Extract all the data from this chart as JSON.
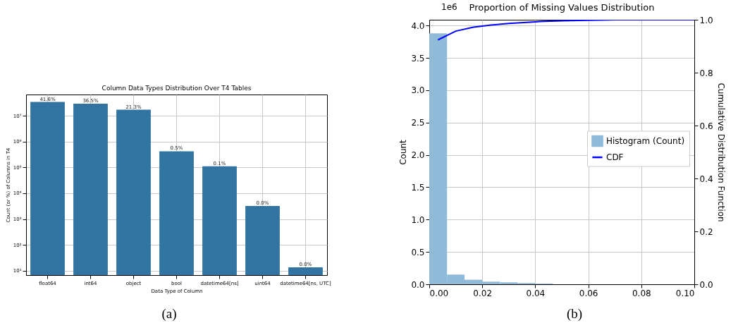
{
  "chart_data": [
    {
      "type": "bar",
      "title": "Column Data Types Distribution Over T4 Tables",
      "xlabel": "Data Type of Column",
      "ylabel": "Count (or %) of Columns in T4",
      "categories": [
        "float64",
        "int64",
        "object",
        "bool",
        "datetime64[ns]",
        "uint64",
        "datetime64[ns, UTC]"
      ],
      "values": [
        34000000,
        29000000,
        17000000,
        420000,
        110000,
        3200,
        13.5
      ],
      "color": "#3274a1",
      "log": true,
      "ylim": [
        6.8,
        66000000
      ],
      "yticks": [
        {
          "value": 10,
          "label": "10¹"
        },
        {
          "value": 100,
          "label": "10²"
        },
        {
          "value": 1000,
          "label": "10³"
        },
        {
          "value": 10000,
          "label": "10⁴"
        },
        {
          "value": 100000,
          "label": "10⁵"
        },
        {
          "value": 1000000,
          "label": "10⁶"
        },
        {
          "value": 10000000,
          "label": "10⁷"
        }
      ],
      "grid": true,
      "annotations": [
        {
          "text": "41.6%",
          "x": "float64",
          "y": 34000000
        },
        {
          "text": "36.5%",
          "x": "int64",
          "y": 29000000
        },
        {
          "text": "21.3%",
          "x": "object",
          "y": 17000000
        },
        {
          "text": "0.5%",
          "x": "bool",
          "y": 420000
        },
        {
          "text": "0.1%",
          "x": "datetime64[ns]",
          "y": 110000
        },
        {
          "text": "0.0%",
          "x": "uint64",
          "y": 3200
        },
        {
          "text": "0.0%",
          "x": "datetime64[ns, UTC]",
          "y": 13.5
        },
        "(a)"
      ]
    },
    {
      "type": "histogram",
      "title": "Proportion of Missing Values Distribution",
      "xlabel": null,
      "ylabel": "Count",
      "y2label": "Cumulative Distribution Function",
      "bins": [
        0,
        0.0067,
        0.0133,
        0.02,
        0.0267,
        0.0333,
        0.04,
        0.0467
      ],
      "series": [
        {
          "name": "Histogram (Count)",
          "color": "#8fbbd9",
          "values": [
            3.88,
            0.15,
            0.07,
            0.04,
            0.03,
            0.02,
            0.01
          ]
        },
        {
          "name": "CDF",
          "type": "line",
          "axis": "y2",
          "color": "#0000ff",
          "x": [
            0.0033,
            0.01,
            0.0167,
            0.0233,
            0.03,
            0.0367,
            0.0433,
            0.05,
            0.06,
            0.07,
            0.08,
            0.09,
            0.1
          ],
          "values": [
            0.924,
            0.957,
            0.972,
            0.98,
            0.986,
            0.99,
            0.994,
            0.996,
            0.998,
            1.0,
            1.0,
            1.0,
            1.0
          ]
        }
      ],
      "xlim": [
        0,
        0.1
      ],
      "xticks": [
        {
          "value": 0,
          "label": "0.00"
        },
        {
          "value": 0.02,
          "label": "0.02"
        },
        {
          "value": 0.04,
          "label": "0.04"
        },
        {
          "value": 0.06,
          "label": "0.06"
        },
        {
          "value": 0.08,
          "label": "0.08"
        },
        {
          "value": 0.1,
          "label": "0.10"
        }
      ],
      "ylim": [
        0,
        4.09
      ],
      "yticks": [
        {
          "value": 0,
          "label": "0.0"
        },
        0.5,
        {
          "value": 1,
          "label": "1.0"
        },
        1.5,
        {
          "value": 2,
          "label": "2.0"
        },
        2.5,
        {
          "value": 3,
          "label": "3.0"
        },
        3.5,
        {
          "value": 4,
          "label": "4.0"
        }
      ],
      "y2lim": [
        0,
        1
      ],
      "y2ticks": [
        {
          "value": 0,
          "label": "0.0"
        },
        0.2,
        0.4,
        0.6,
        0.8,
        {
          "value": 1,
          "label": "1.0"
        }
      ],
      "grid": true,
      "legend": "right",
      "annotations": [
        "1e6",
        "(b)"
      ]
    }
  ]
}
